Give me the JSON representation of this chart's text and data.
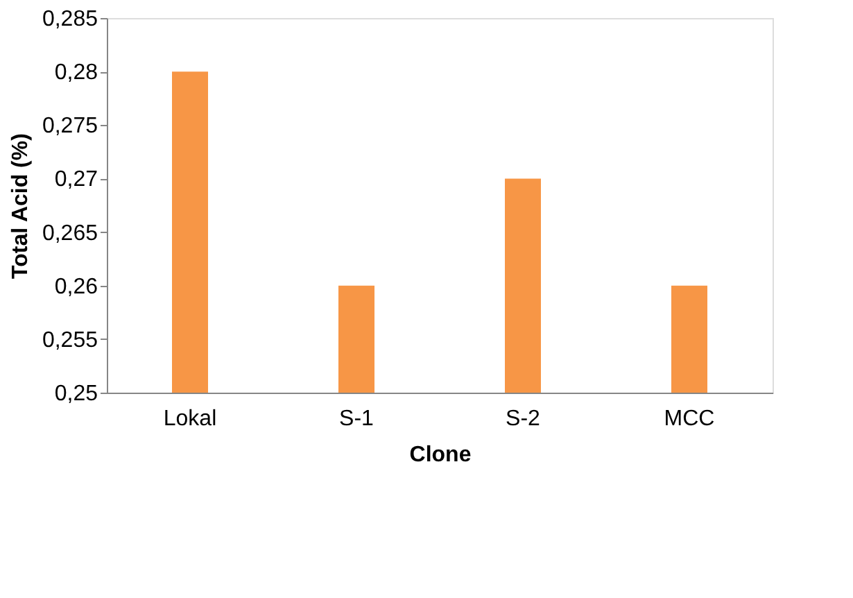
{
  "chart_data": {
    "type": "bar",
    "xlabel": "Clone",
    "ylabel": "Total Acid (%)",
    "categories": [
      "Lokal",
      "S-1",
      "S-2",
      "MCC"
    ],
    "values": [
      0.28,
      0.26,
      0.27,
      0.26
    ],
    "color": "#f79646",
    "ylim": [
      0.25,
      0.285
    ],
    "yticks": [
      {
        "value": 0.25,
        "label": "0,25"
      },
      {
        "value": 0.255,
        "label": "0,255"
      },
      {
        "value": 0.26,
        "label": "0,26"
      },
      {
        "value": 0.265,
        "label": "0,265"
      },
      {
        "value": 0.27,
        "label": "0,27"
      },
      {
        "value": 0.275,
        "label": "0,275"
      },
      {
        "value": 0.28,
        "label": "0,28"
      },
      {
        "value": 0.285,
        "label": "0,285"
      }
    ],
    "grid": false
  }
}
